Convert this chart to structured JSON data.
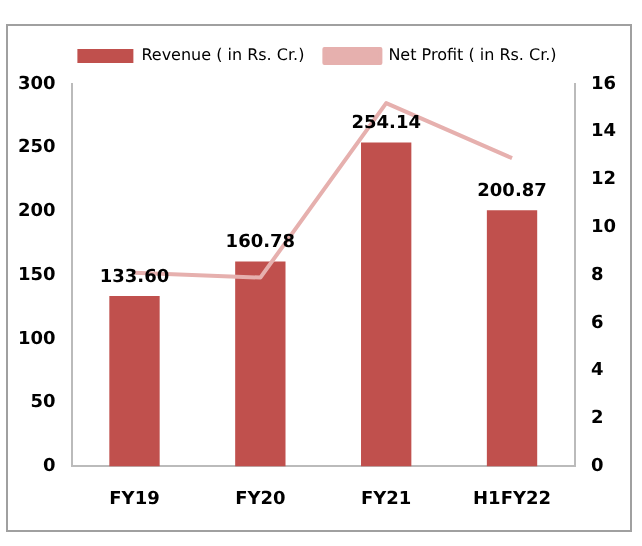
{
  "chart_data": {
    "type": "bar",
    "categories": [
      "FY19",
      "FY20",
      "FY21",
      "H1FY22"
    ],
    "series": [
      {
        "name": "Revenue ( in Rs. Cr.)",
        "color": "#c0504d",
        "values": [
          133.6,
          160.78,
          254.14,
          200.87
        ],
        "value_labels": [
          "133.60",
          "160.78",
          "254.14",
          "200.87"
        ]
      },
      {
        "name": "Net Profit ( in Rs. Cr.)",
        "type": "line",
        "axis": "y2",
        "color": "#e6b0ae",
        "values": [
          8.1,
          7.9,
          15.2,
          12.9
        ]
      }
    ],
    "ylim": [
      0,
      300
    ],
    "yticks": [
      0,
      50,
      100,
      150,
      200,
      250,
      300
    ],
    "y2lim": [
      0,
      16
    ],
    "y2ticks": [
      0,
      2,
      4,
      6,
      8,
      10,
      12,
      14,
      16
    ],
    "legend": "top",
    "grid": false,
    "marker": "none"
  }
}
